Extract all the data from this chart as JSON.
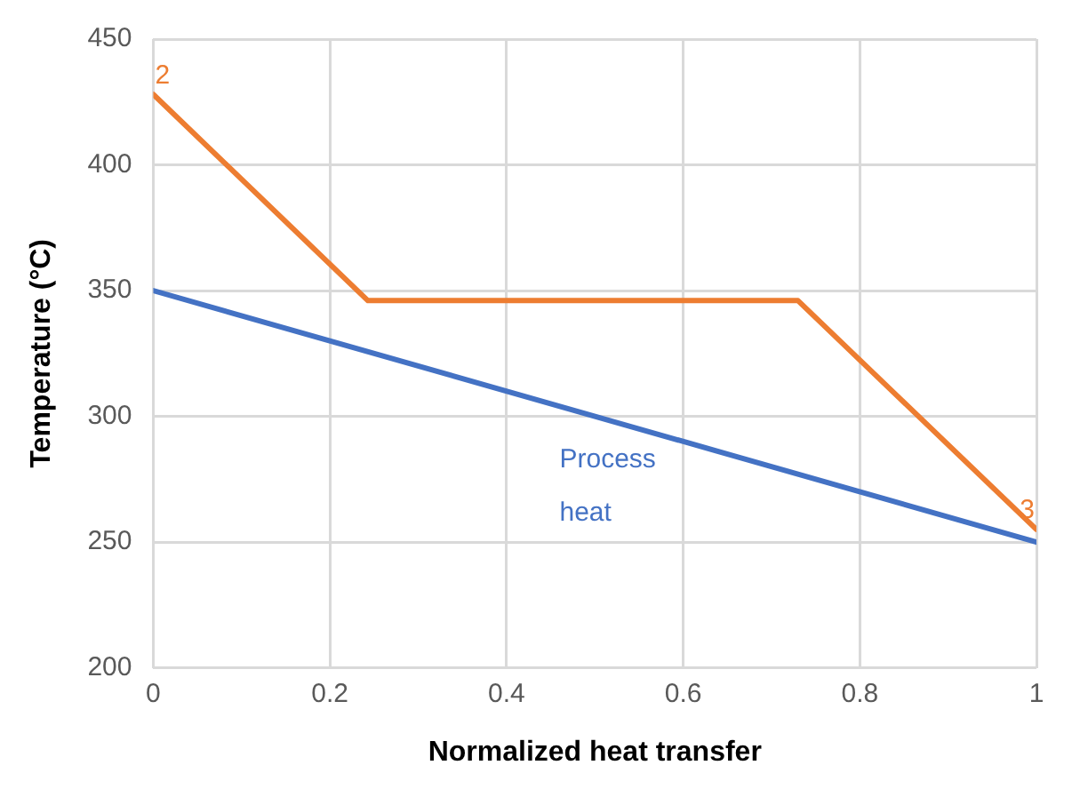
{
  "chart_data": {
    "type": "line",
    "xlabel": "Normalized heat transfer",
    "ylabel": "Temperature (°C)",
    "xlim": [
      0,
      1
    ],
    "xticks": [
      0,
      0.2,
      0.4,
      0.6,
      0.8,
      1
    ],
    "ylim": [
      200,
      450
    ],
    "yticks": [
      200,
      250,
      300,
      350,
      400,
      450
    ],
    "grid": true,
    "legend": false,
    "marker": "none",
    "line_style": "solid",
    "series": [
      {
        "color": "#ed7d31",
        "x": [
          0,
          0.243,
          0.73,
          1
        ],
        "values": [
          428,
          346,
          346,
          255
        ]
      },
      {
        "color": "#4472c4",
        "x": [
          0,
          1
        ],
        "values": [
          350,
          250
        ]
      }
    ],
    "annotations": [
      {
        "text": "2",
        "x": 0,
        "y": 428
      },
      {
        "text": "3",
        "x": 1,
        "y": 255
      },
      "Process heat"
    ]
  }
}
